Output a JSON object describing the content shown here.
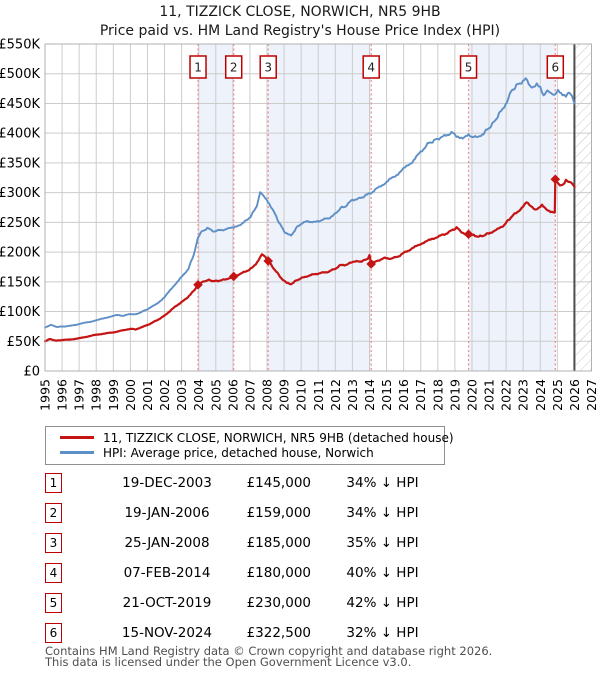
{
  "title": "11, TIZZICK CLOSE, NORWICH, NR5 9HB",
  "subtitle": "Price paid vs. HM Land Registry's House Price Index (HPI)",
  "chart_data": {
    "type": "line",
    "xlim": [
      1995,
      2027
    ],
    "ylim_k": [
      0,
      550
    ],
    "grid": true,
    "legend_position": "below",
    "x_ticks": [
      1995,
      1996,
      1997,
      1998,
      1999,
      2000,
      2001,
      2002,
      2003,
      2004,
      2005,
      2006,
      2007,
      2008,
      2009,
      2010,
      2011,
      2012,
      2013,
      2014,
      2015,
      2016,
      2017,
      2018,
      2019,
      2020,
      2021,
      2022,
      2023,
      2024,
      2025,
      2026,
      2027
    ],
    "y_ticks": [
      {
        "v": 0,
        "label": "£0"
      },
      {
        "v": 50,
        "label": "£50K"
      },
      {
        "v": 100,
        "label": "£100K"
      },
      {
        "v": 150,
        "label": "£150K"
      },
      {
        "v": 200,
        "label": "£200K"
      },
      {
        "v": 250,
        "label": "£250K"
      },
      {
        "v": 300,
        "label": "£300K"
      },
      {
        "v": 350,
        "label": "£350K"
      },
      {
        "v": 400,
        "label": "£400K"
      },
      {
        "v": 450,
        "label": "£450K"
      },
      {
        "v": 500,
        "label": "£500K"
      },
      {
        "v": 550,
        "label": "£550K"
      }
    ],
    "unit": "GBP thousands",
    "series": [
      {
        "name": "11, TIZZICK CLOSE, NORWICH, NR5 9HB (detached house)",
        "color": "#c41414",
        "points": [
          [
            1995.0,
            50
          ],
          [
            1995.3,
            54
          ],
          [
            1995.6,
            51
          ],
          [
            1996.0,
            52
          ],
          [
            1996.5,
            53
          ],
          [
            1997.0,
            55
          ],
          [
            1997.5,
            58
          ],
          [
            1998.0,
            61
          ],
          [
            1998.5,
            63
          ],
          [
            1999.0,
            65
          ],
          [
            1999.5,
            68
          ],
          [
            2000.0,
            71
          ],
          [
            2000.3,
            70
          ],
          [
            2000.8,
            75
          ],
          [
            2001.2,
            80
          ],
          [
            2001.6,
            86
          ],
          [
            2002.0,
            93
          ],
          [
            2002.4,
            103
          ],
          [
            2002.8,
            112
          ],
          [
            2003.2,
            120
          ],
          [
            2003.5,
            128
          ],
          [
            2003.75,
            136
          ],
          [
            2003.96,
            145
          ],
          [
            2004.3,
            151
          ],
          [
            2004.6,
            153
          ],
          [
            2004.9,
            151
          ],
          [
            2005.2,
            152
          ],
          [
            2005.6,
            154
          ],
          [
            2006.05,
            159
          ],
          [
            2006.4,
            163
          ],
          [
            2006.8,
            168
          ],
          [
            2007.2,
            175
          ],
          [
            2007.5,
            186
          ],
          [
            2007.7,
            197
          ],
          [
            2007.9,
            193
          ],
          [
            2008.07,
            185
          ],
          [
            2008.3,
            176
          ],
          [
            2008.6,
            165
          ],
          [
            2008.9,
            154
          ],
          [
            2009.15,
            148
          ],
          [
            2009.4,
            146
          ],
          [
            2009.7,
            152
          ],
          [
            2010.0,
            156
          ],
          [
            2010.4,
            160
          ],
          [
            2010.8,
            163
          ],
          [
            2011.2,
            165
          ],
          [
            2011.6,
            167
          ],
          [
            2012.0,
            172
          ],
          [
            2012.3,
            178
          ],
          [
            2012.7,
            179
          ],
          [
            2013.0,
            184
          ],
          [
            2013.4,
            184
          ],
          [
            2013.7,
            186
          ],
          [
            2013.9,
            188
          ],
          [
            2014.0,
            195
          ],
          [
            2014.1,
            180
          ],
          [
            2014.5,
            186
          ],
          [
            2014.9,
            190
          ],
          [
            2015.3,
            189
          ],
          [
            2015.7,
            193
          ],
          [
            2016.1,
            200
          ],
          [
            2016.5,
            206
          ],
          [
            2017.0,
            214
          ],
          [
            2017.5,
            220
          ],
          [
            2018.0,
            226
          ],
          [
            2018.4,
            230
          ],
          [
            2018.8,
            236
          ],
          [
            2019.1,
            241
          ],
          [
            2019.4,
            234
          ],
          [
            2019.6,
            231
          ],
          [
            2019.8,
            230
          ],
          [
            2020.1,
            228
          ],
          [
            2020.4,
            226
          ],
          [
            2020.7,
            228
          ],
          [
            2021.0,
            232
          ],
          [
            2021.5,
            238
          ],
          [
            2021.9,
            246
          ],
          [
            2022.2,
            256
          ],
          [
            2022.5,
            264
          ],
          [
            2022.75,
            270
          ],
          [
            2023.0,
            277
          ],
          [
            2023.2,
            285
          ],
          [
            2023.45,
            276
          ],
          [
            2023.7,
            271
          ],
          [
            2023.9,
            273
          ],
          [
            2024.1,
            278
          ],
          [
            2024.35,
            272
          ],
          [
            2024.6,
            269
          ],
          [
            2024.85,
            266
          ],
          [
            2024.88,
            322.5
          ],
          [
            2025.0,
            318
          ],
          [
            2025.15,
            313
          ],
          [
            2025.35,
            315
          ],
          [
            2025.5,
            320
          ],
          [
            2025.65,
            318
          ],
          [
            2025.8,
            319
          ],
          [
            2026.0,
            310
          ]
        ]
      },
      {
        "name": "HPI: Average price, detached house, Norwich",
        "color": "#5e8fc7",
        "points": [
          [
            1995.0,
            73
          ],
          [
            1995.35,
            78
          ],
          [
            1995.7,
            74
          ],
          [
            1996.1,
            75
          ],
          [
            1996.5,
            76
          ],
          [
            1997.0,
            79
          ],
          [
            1997.5,
            82
          ],
          [
            1998.0,
            85
          ],
          [
            1998.6,
            90
          ],
          [
            1999.2,
            94
          ],
          [
            1999.6,
            93
          ],
          [
            2000.0,
            96
          ],
          [
            2000.3,
            95
          ],
          [
            2000.7,
            100
          ],
          [
            2001.0,
            104
          ],
          [
            2001.5,
            112
          ],
          [
            2002.0,
            124
          ],
          [
            2002.5,
            142
          ],
          [
            2003.0,
            158
          ],
          [
            2003.4,
            172
          ],
          [
            2003.7,
            195
          ],
          [
            2003.96,
            225
          ],
          [
            2004.2,
            235
          ],
          [
            2004.5,
            240
          ],
          [
            2004.9,
            235
          ],
          [
            2005.3,
            237
          ],
          [
            2005.7,
            239
          ],
          [
            2006.05,
            241
          ],
          [
            2006.4,
            246
          ],
          [
            2006.8,
            253
          ],
          [
            2007.1,
            262
          ],
          [
            2007.4,
            278
          ],
          [
            2007.6,
            302
          ],
          [
            2007.8,
            295
          ],
          [
            2008.07,
            285
          ],
          [
            2008.4,
            268
          ],
          [
            2008.7,
            250
          ],
          [
            2009.0,
            235
          ],
          [
            2009.4,
            227
          ],
          [
            2009.7,
            240
          ],
          [
            2010.0,
            248
          ],
          [
            2010.4,
            252
          ],
          [
            2010.8,
            250
          ],
          [
            2011.2,
            254
          ],
          [
            2011.6,
            257
          ],
          [
            2012.0,
            264
          ],
          [
            2012.3,
            274
          ],
          [
            2012.6,
            277
          ],
          [
            2013.0,
            288
          ],
          [
            2013.4,
            290
          ],
          [
            2013.7,
            294
          ],
          [
            2014.1,
            300
          ],
          [
            2014.5,
            308
          ],
          [
            2015.0,
            318
          ],
          [
            2015.5,
            328
          ],
          [
            2016.0,
            340
          ],
          [
            2016.5,
            352
          ],
          [
            2017.0,
            368
          ],
          [
            2017.4,
            382
          ],
          [
            2017.7,
            386
          ],
          [
            2018.0,
            391
          ],
          [
            2018.4,
            395
          ],
          [
            2018.8,
            401
          ],
          [
            2019.1,
            396
          ],
          [
            2019.45,
            391
          ],
          [
            2019.8,
            396
          ],
          [
            2020.1,
            394
          ],
          [
            2020.35,
            392
          ],
          [
            2020.6,
            398
          ],
          [
            2020.9,
            406
          ],
          [
            2021.2,
            415
          ],
          [
            2021.5,
            428
          ],
          [
            2021.8,
            442
          ],
          [
            2022.05,
            452
          ],
          [
            2022.3,
            470
          ],
          [
            2022.6,
            480
          ],
          [
            2022.9,
            486
          ],
          [
            2023.15,
            491
          ],
          [
            2023.4,
            478
          ],
          [
            2023.6,
            475
          ],
          [
            2023.8,
            481
          ],
          [
            2024.0,
            477
          ],
          [
            2024.2,
            464
          ],
          [
            2024.5,
            472
          ],
          [
            2024.8,
            462
          ],
          [
            2025.05,
            474
          ],
          [
            2025.3,
            465
          ],
          [
            2025.5,
            464
          ],
          [
            2025.7,
            471
          ],
          [
            2025.85,
            462
          ],
          [
            2026.0,
            450
          ]
        ]
      }
    ],
    "sales": [
      {
        "n": 1,
        "date": "19-DEC-2003",
        "year": 2003.96,
        "price_k": 145,
        "price_label": "£145,000",
        "vs_hpi": "34% ↓ HPI"
      },
      {
        "n": 2,
        "date": "19-JAN-2006",
        "year": 2006.05,
        "price_k": 159,
        "price_label": "£159,000",
        "vs_hpi": "34% ↓ HPI"
      },
      {
        "n": 3,
        "date": "25-JAN-2008",
        "year": 2008.07,
        "price_k": 185,
        "price_label": "£185,000",
        "vs_hpi": "35% ↓ HPI"
      },
      {
        "n": 4,
        "date": "07-FEB-2014",
        "year": 2014.1,
        "price_k": 180,
        "price_label": "£180,000",
        "vs_hpi": "40% ↓ HPI"
      },
      {
        "n": 5,
        "date": "21-OCT-2019",
        "year": 2019.8,
        "price_k": 230,
        "price_label": "£230,000",
        "vs_hpi": "42% ↓ HPI"
      },
      {
        "n": 6,
        "date": "15-NOV-2024",
        "year": 2024.88,
        "price_k": 322.5,
        "price_label": "£322,500",
        "vs_hpi": "32% ↓ HPI"
      }
    ],
    "shaded_periods": [
      [
        2003.96,
        2006.05
      ],
      [
        2008.07,
        2014.1
      ],
      [
        2019.8,
        2024.88
      ]
    ],
    "future_region": {
      "from": 2026,
      "to": 2027
    },
    "colors": {
      "band": "#edf2fb",
      "grid": "#cccccc",
      "border": "#b0b0b0",
      "dashed_sale_line": "#f48a8a",
      "marker_box_border": "#c00000",
      "now_line": "#4d4d4d",
      "hatch": "#c9c9c9"
    }
  },
  "footer": {
    "line1": "Contains HM Land Registry data © Crown copyright and database right 2026.",
    "line2": "This data is licensed under the Open Government Licence v3.0."
  }
}
